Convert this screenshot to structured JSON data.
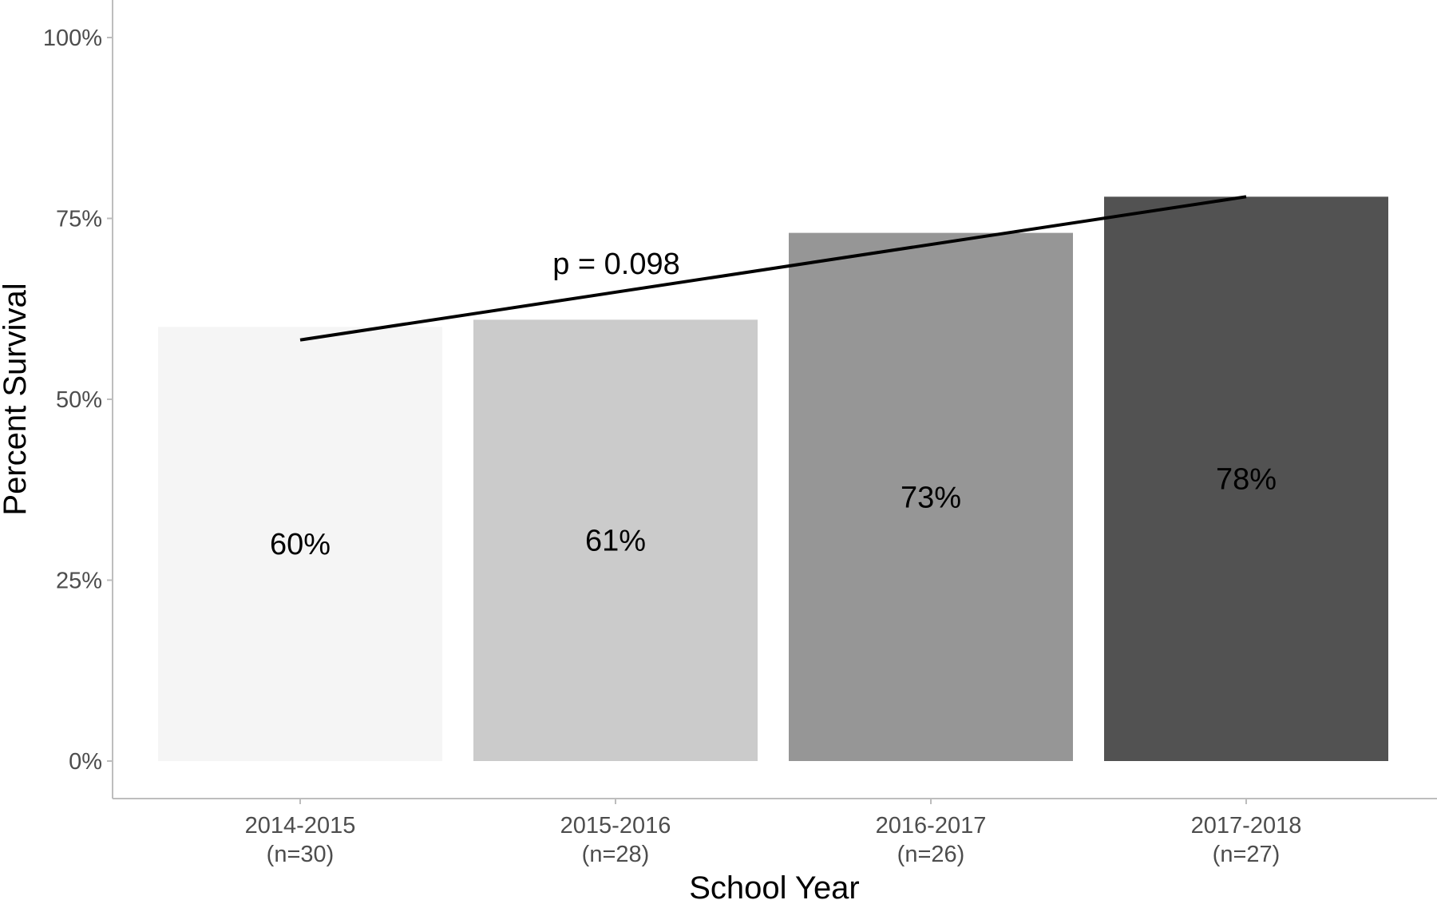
{
  "chart_data": {
    "type": "bar",
    "title": "",
    "xlabel": "School Year",
    "ylabel": "Percent Survival",
    "categories": [
      "2014-2015",
      "2015-2016",
      "2016-2017",
      "2017-2018"
    ],
    "category_sublabels": [
      "(n=30)",
      "(n=28)",
      "(n=26)",
      "(n=27)"
    ],
    "values": [
      60,
      61,
      73,
      78
    ],
    "value_labels": [
      "60%",
      "61%",
      "73%",
      "78%"
    ],
    "bar_colors": [
      "#f5f5f5",
      "#cbcbcb",
      "#969696",
      "#525252"
    ],
    "ylim": [
      0,
      100
    ],
    "yticks": [
      0,
      25,
      50,
      75,
      100
    ],
    "ytick_labels": [
      "0%",
      "25%",
      "50%",
      "75%",
      "100%"
    ],
    "grid": false,
    "legend": "none",
    "trend_line": {
      "start": 58.2,
      "end": 78.0,
      "color": "#000000"
    },
    "annotation": "p = 0.098"
  }
}
